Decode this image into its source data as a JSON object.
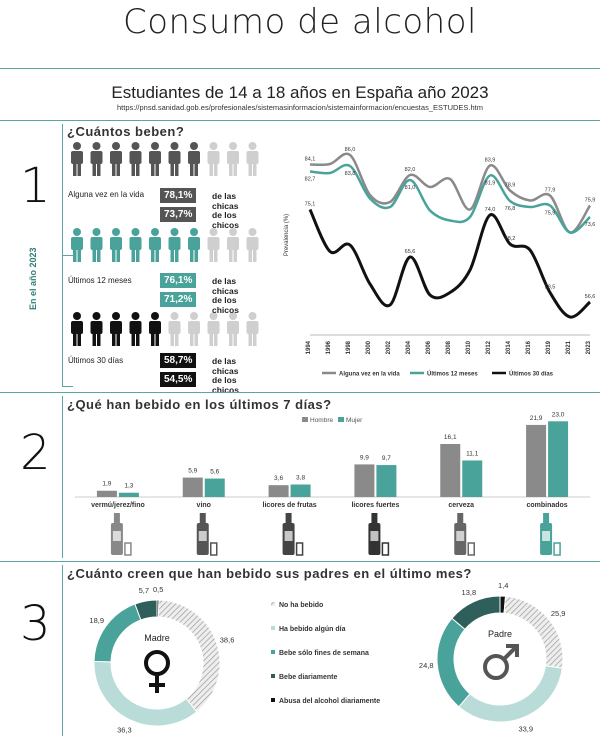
{
  "title": "Consumo de alcohol",
  "subtitle": "Estudiantes de 14 a 18 años en España año 2023",
  "url": "https://pnsd.sanidad.gob.es/profesionales/sistemasinformacion/sistemainformacion/encuestas_ESTUDES.htm",
  "colors": {
    "gray": "#8a8a8a",
    "teal": "#4aa39b",
    "black": "#111111",
    "light": "#cfcfcf",
    "accent": "#5aa7a0"
  },
  "section1": {
    "number": "1",
    "question": "¿Cuántos beben?",
    "side_label": "En el año 2023",
    "groups": [
      {
        "label": "Alguna vez en la vida",
        "chicas": "78,1%",
        "chicos": "73,7%",
        "chicas_text": "de las chicas",
        "chicos_text": "de los chicos",
        "filled": 7
      },
      {
        "label": "Últimos 12 meses",
        "chicas": "76,1%",
        "chicos": "71,2%",
        "chicas_text": "de las chicas",
        "chicos_text": "de los chicos",
        "filled": 7
      },
      {
        "label": "Últimos 30 días",
        "chicas": "58,7%",
        "chicos": "54,5%",
        "chicas_text": "de las chicas",
        "chicos_text": "de los chicos",
        "filled": 5
      }
    ]
  },
  "section2": {
    "number": "2",
    "question": "¿Qué han bebido en los últimos 7 días?"
  },
  "section3": {
    "number": "3",
    "question": "¿Cuánto creen que han bebido sus padres en el último mes?",
    "madre_label": "Madre",
    "padre_label": "Padre",
    "legend": [
      "No ha bebido",
      "Ha bebido algún día",
      "Bebe sólo fines de semana",
      "Bebe diariamente",
      "Abusa del alcohol diariamente"
    ]
  },
  "chart_data": [
    {
      "type": "line",
      "ylabel": "Prevalencia (%)",
      "x": [
        "1994",
        "1996",
        "1998",
        "2000",
        "2002",
        "2004",
        "2006",
        "2008",
        "2010",
        "2012",
        "2014",
        "2016",
        "2019",
        "2021",
        "2023"
      ],
      "series": [
        {
          "name": "Alguna vez en la vida",
          "color": "#8a8a8a",
          "values": [
            84.1,
            84.2,
            86.0,
            78.0,
            76.6,
            82.0,
            79.6,
            81.2,
            75.1,
            83.9,
            78.9,
            76.9,
            77.9,
            70.5,
            75.9
          ]
        },
        {
          "name": "Últimos 12 meses",
          "color": "#4aa39b",
          "values": [
            82.7,
            82.4,
            83.8,
            77.3,
            75.6,
            81.0,
            74.9,
            72.9,
            73.6,
            81.9,
            76.8,
            75.6,
            75.9,
            70.5,
            73.6
          ]
        },
        {
          "name": "Últimos 30 días",
          "color": "#111111",
          "values": [
            75.1,
            66.7,
            68.0,
            60.2,
            56.0,
            65.6,
            58.0,
            58.5,
            63.0,
            74.0,
            68.2,
            67.0,
            58.5,
            53.6,
            56.6
          ]
        }
      ],
      "point_labels": [
        {
          "series": 0,
          "index": 0,
          "text": "84,1"
        },
        {
          "series": 0,
          "index": 2,
          "text": "86,0"
        },
        {
          "series": 0,
          "index": 5,
          "text": "82,0"
        },
        {
          "series": 0,
          "index": 9,
          "text": "83,9"
        },
        {
          "series": 0,
          "index": 10,
          "text": "78,9"
        },
        {
          "series": 0,
          "index": 12,
          "text": "77,9"
        },
        {
          "series": 0,
          "index": 14,
          "text": "75,9"
        },
        {
          "series": 1,
          "index": 0,
          "text": "82,7"
        },
        {
          "series": 1,
          "index": 2,
          "text": "83,8"
        },
        {
          "series": 1,
          "index": 5,
          "text": "81,0"
        },
        {
          "series": 1,
          "index": 9,
          "text": "81,9"
        },
        {
          "series": 1,
          "index": 10,
          "text": "76,8"
        },
        {
          "series": 1,
          "index": 12,
          "text": "75,9"
        },
        {
          "series": 1,
          "index": 14,
          "text": "73,6"
        },
        {
          "series": 2,
          "index": 0,
          "text": "75,1"
        },
        {
          "series": 2,
          "index": 5,
          "text": "65,6"
        },
        {
          "series": 2,
          "index": 9,
          "text": "74,0"
        },
        {
          "series": 2,
          "index": 10,
          "text": "68,2"
        },
        {
          "series": 2,
          "index": 12,
          "text": "58,5"
        },
        {
          "series": 2,
          "index": 14,
          "text": "56,6"
        }
      ],
      "ylim": [
        50,
        90
      ]
    },
    {
      "type": "bar",
      "categories": [
        "vermú/jerez/fino",
        "vino",
        "licores de frutas",
        "licores fuertes",
        "cerveza",
        "combinados"
      ],
      "series": [
        {
          "name": "Hombre",
          "color": "#8a8a8a",
          "values": [
            1.9,
            5.9,
            3.6,
            9.9,
            16.1,
            21.9
          ],
          "labels": [
            "1,9",
            "5,9",
            "3,6",
            "9,9",
            "16,1",
            "21,9"
          ]
        },
        {
          "name": "Mujer",
          "color": "#4aa39b",
          "values": [
            1.3,
            5.6,
            3.8,
            9.7,
            11.1,
            23.0
          ],
          "labels": [
            "1,3",
            "5,6",
            "3,8",
            "9,7",
            "11,1",
            "23,0"
          ]
        }
      ],
      "ylim": [
        0,
        24
      ]
    },
    {
      "type": "pie",
      "title": "Madre",
      "categories": [
        "Abusa del alcohol diariamente",
        "No ha bebido",
        "Ha bebido algún día",
        "Bebe sólo fines de semana",
        "Bebe diariamente"
      ],
      "values": [
        0.5,
        38.6,
        36.3,
        18.9,
        5.7
      ],
      "labels": [
        "0,5",
        "38,6",
        "36,3",
        "18,9",
        "5,7"
      ],
      "colors": [
        "#111111",
        "hatch",
        "#b9dcd8",
        "#4aa39b",
        "#2f5f5a"
      ]
    },
    {
      "type": "pie",
      "title": "Padre",
      "categories": [
        "Abusa del alcohol diariamente",
        "No ha bebido",
        "Ha bebido algún día",
        "Bebe sólo fines de semana",
        "Bebe diariamente"
      ],
      "values": [
        1.4,
        25.9,
        33.9,
        24.8,
        13.8
      ],
      "labels": [
        "1,4",
        "25,9",
        "33,9",
        "24,8",
        "13,8"
      ],
      "colors": [
        "#111111",
        "hatch",
        "#b9dcd8",
        "#4aa39b",
        "#2f5f5a"
      ]
    }
  ]
}
